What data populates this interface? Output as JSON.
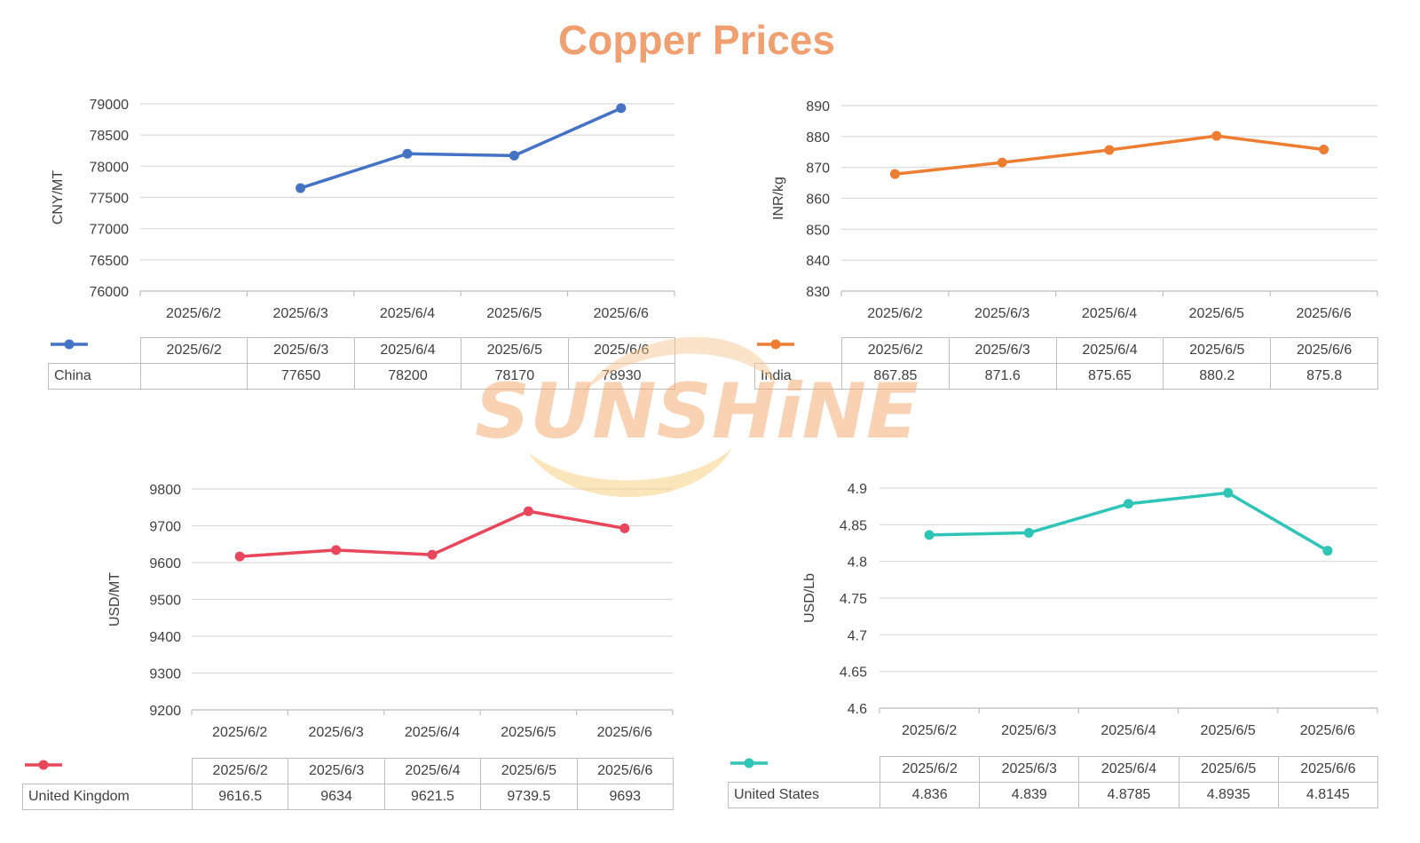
{
  "title": "Copper Prices",
  "watermark_text": "SUNSHiNE",
  "chart_data": [
    {
      "type": "line",
      "ylabel": "CNY/MT",
      "categories": [
        "2025/6/2",
        "2025/6/3",
        "2025/6/4",
        "2025/6/5",
        "2025/6/6"
      ],
      "yticks": [
        "76000",
        "76500",
        "77000",
        "77500",
        "78000",
        "78500",
        "79000"
      ],
      "ylim": [
        76000,
        79000
      ],
      "grid": true,
      "color": "#4472C4",
      "series": [
        {
          "name": "China",
          "values": [
            null,
            77650,
            78200,
            78170,
            78930
          ],
          "labels": [
            "",
            "77650",
            "78200",
            "78170",
            "78930"
          ]
        }
      ]
    },
    {
      "type": "line",
      "ylabel": "INR/kg",
      "categories": [
        "2025/6/2",
        "2025/6/3",
        "2025/6/4",
        "2025/6/5",
        "2025/6/6"
      ],
      "yticks": [
        "830",
        "840",
        "850",
        "860",
        "870",
        "880",
        "890"
      ],
      "ylim": [
        830,
        890
      ],
      "grid": true,
      "color": "#ED7D31",
      "series": [
        {
          "name": "India",
          "values": [
            867.85,
            871.6,
            875.65,
            880.2,
            875.8
          ],
          "labels": [
            "867.85",
            "871.6",
            "875.65",
            "880.2",
            "875.8"
          ]
        }
      ]
    },
    {
      "type": "line",
      "ylabel": "USD/MT",
      "categories": [
        "2025/6/2",
        "2025/6/3",
        "2025/6/4",
        "2025/6/5",
        "2025/6/6"
      ],
      "yticks": [
        "9200",
        "9300",
        "9400",
        "9500",
        "9600",
        "9700",
        "9800"
      ],
      "ylim": [
        9200,
        9800
      ],
      "grid": true,
      "color": "#E8475B",
      "series": [
        {
          "name": "United Kingdom",
          "values": [
            9616.5,
            9634,
            9621.5,
            9739.5,
            9693
          ],
          "labels": [
            "9616.5",
            "9634",
            "9621.5",
            "9739.5",
            "9693"
          ]
        }
      ]
    },
    {
      "type": "line",
      "ylabel": "USD/Lb",
      "categories": [
        "2025/6/2",
        "2025/6/3",
        "2025/6/4",
        "2025/6/5",
        "2025/6/6"
      ],
      "yticks": [
        "4.6",
        "4.65",
        "4.7",
        "4.75",
        "4.8",
        "4.85",
        "4.9"
      ],
      "ylim": [
        4.6,
        4.9
      ],
      "grid": true,
      "color": "#2EC4B6",
      "series": [
        {
          "name": "United States",
          "values": [
            4.836,
            4.839,
            4.8785,
            4.8935,
            4.8145
          ],
          "labels": [
            "4.836",
            "4.839",
            "4.8785",
            "4.8935",
            "4.8145"
          ]
        }
      ]
    }
  ]
}
